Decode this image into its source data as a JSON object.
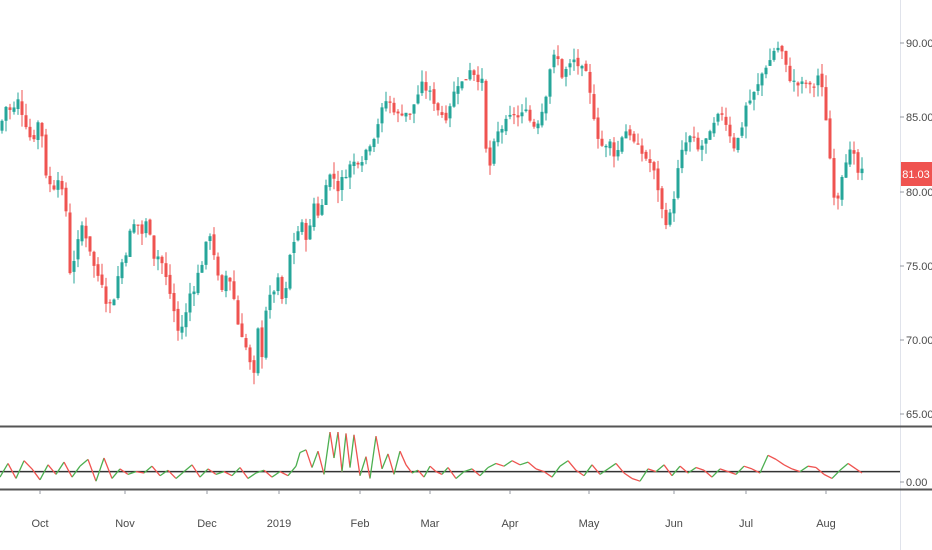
{
  "colors": {
    "up": "#26a69a",
    "down": "#ef5350",
    "osc_up": "#4caf50",
    "osc_down": "#ef5350",
    "axis_text": "#4a4a4a",
    "separator": "#555555",
    "baseline": "#333333",
    "price_tag": "#ef5350"
  },
  "chart_data": [
    {
      "type": "candlestick",
      "y_ticks": [
        "90.00",
        "85.00",
        "80.00",
        "75.00",
        "70.00",
        "65.00"
      ],
      "ylim": [
        64.2,
        92.5
      ],
      "x_ticks": [
        "Oct",
        "Nov",
        "Dec",
        "2019",
        "Feb",
        "Mar",
        "Apr",
        "May",
        "Jun",
        "Jul",
        "Aug"
      ],
      "last_price": "81.03",
      "grid": false,
      "close_path": [
        [
          0,
          83.8
        ],
        [
          5,
          85.5
        ],
        [
          12,
          85.0
        ],
        [
          18,
          85.8
        ],
        [
          25,
          84.5
        ],
        [
          32,
          83.0
        ],
        [
          40,
          84.8
        ],
        [
          46,
          81.0
        ],
        [
          52,
          79.8
        ],
        [
          58,
          80.8
        ],
        [
          66,
          78.5
        ],
        [
          70,
          74.5
        ],
        [
          75,
          75.5
        ],
        [
          82,
          77.5
        ],
        [
          88,
          76.5
        ],
        [
          95,
          74.5
        ],
        [
          102,
          73.8
        ],
        [
          108,
          72.0
        ],
        [
          114,
          72.8
        ],
        [
          120,
          74.8
        ],
        [
          125,
          75.5
        ],
        [
          130,
          77.0
        ],
        [
          136,
          77.8
        ],
        [
          142,
          77.0
        ],
        [
          148,
          78.0
        ],
        [
          154,
          75.5
        ],
        [
          160,
          75.5
        ],
        [
          166,
          74.0
        ],
        [
          172,
          72.5
        ],
        [
          178,
          70.5
        ],
        [
          184,
          71.0
        ],
        [
          190,
          73.0
        ],
        [
          195,
          73.5
        ],
        [
          200,
          74.8
        ],
        [
          205,
          75.5
        ],
        [
          208,
          77.5
        ],
        [
          212,
          76.5
        ],
        [
          218,
          74.0
        ],
        [
          222,
          73.0
        ],
        [
          227,
          74.5
        ],
        [
          232,
          73.5
        ],
        [
          238,
          71.0
        ],
        [
          244,
          70.0
        ],
        [
          249,
          68.5
        ],
        [
          254,
          67.5
        ],
        [
          258,
          70.5
        ],
        [
          262,
          69.0
        ],
        [
          266,
          72.0
        ],
        [
          272,
          73.0
        ],
        [
          278,
          73.8
        ],
        [
          284,
          72.0
        ],
        [
          290,
          75.5
        ],
        [
          296,
          77.0
        ],
        [
          302,
          77.5
        ],
        [
          308,
          76.5
        ],
        [
          314,
          79.0
        ],
        [
          320,
          78.0
        ],
        [
          326,
          80.5
        ],
        [
          332,
          81.0
        ],
        [
          338,
          80.0
        ],
        [
          344,
          80.8
        ],
        [
          350,
          81.5
        ],
        [
          356,
          81.8
        ],
        [
          362,
          82.0
        ],
        [
          368,
          82.8
        ],
        [
          374,
          83.5
        ],
        [
          380,
          84.8
        ],
        [
          386,
          85.8
        ],
        [
          392,
          85.5
        ],
        [
          398,
          84.8
        ],
        [
          404,
          85.2
        ],
        [
          410,
          84.8
        ],
        [
          416,
          86.0
        ],
        [
          422,
          86.8
        ],
        [
          428,
          86.5
        ],
        [
          434,
          85.8
        ],
        [
          440,
          85.0
        ],
        [
          446,
          84.8
        ],
        [
          452,
          86.0
        ],
        [
          458,
          87.0
        ],
        [
          464,
          87.0
        ],
        [
          470,
          88.0
        ],
        [
          476,
          87.5
        ],
        [
          482,
          87.0
        ],
        [
          486,
          82.5
        ],
        [
          490,
          81.5
        ],
        [
          496,
          83.5
        ],
        [
          502,
          84.0
        ],
        [
          508,
          84.5
        ],
        [
          514,
          85.0
        ],
        [
          520,
          84.5
        ],
        [
          526,
          85.5
        ],
        [
          532,
          84.0
        ],
        [
          538,
          84.5
        ],
        [
          544,
          85.5
        ],
        [
          550,
          88.0
        ],
        [
          556,
          89.0
        ],
        [
          562,
          87.5
        ],
        [
          568,
          88.0
        ],
        [
          574,
          88.5
        ],
        [
          580,
          88.0
        ],
        [
          586,
          87.5
        ],
        [
          592,
          85.5
        ],
        [
          598,
          83.5
        ],
        [
          604,
          82.5
        ],
        [
          610,
          83.0
        ],
        [
          616,
          82.0
        ],
        [
          622,
          83.5
        ],
        [
          628,
          84.0
        ],
        [
          634,
          83.0
        ],
        [
          640,
          82.5
        ],
        [
          646,
          82.0
        ],
        [
          652,
          81.5
        ],
        [
          658,
          80.0
        ],
        [
          662,
          78.5
        ],
        [
          668,
          77.5
        ],
        [
          674,
          79.5
        ],
        [
          680,
          82.0
        ],
        [
          686,
          83.0
        ],
        [
          692,
          83.5
        ],
        [
          698,
          82.5
        ],
        [
          704,
          83.0
        ],
        [
          710,
          83.5
        ],
        [
          716,
          84.5
        ],
        [
          722,
          85.0
        ],
        [
          728,
          84.0
        ],
        [
          734,
          82.8
        ],
        [
          740,
          83.5
        ],
        [
          746,
          85.5
        ],
        [
          752,
          86.0
        ],
        [
          758,
          86.8
        ],
        [
          764,
          88.0
        ],
        [
          770,
          88.5
        ],
        [
          776,
          89.5
        ],
        [
          782,
          89.0
        ],
        [
          788,
          87.5
        ],
        [
          794,
          87.0
        ],
        [
          800,
          86.8
        ],
        [
          806,
          87.0
        ],
        [
          812,
          86.5
        ],
        [
          818,
          87.5
        ],
        [
          824,
          86.0
        ],
        [
          830,
          82.0
        ],
        [
          836,
          78.5
        ],
        [
          840,
          80.5
        ],
        [
          846,
          82.0
        ],
        [
          852,
          82.5
        ],
        [
          858,
          81.0
        ],
        [
          862,
          81.0
        ]
      ]
    },
    {
      "type": "line",
      "y_ticks": [
        "0.00"
      ],
      "ylim": [
        -0.2,
        4.2
      ],
      "reference_line": 1.0,
      "x": [
        0,
        8,
        16,
        24,
        32,
        40,
        48,
        56,
        64,
        72,
        80,
        88,
        96,
        104,
        112,
        120,
        128,
        136,
        144,
        152,
        160,
        168,
        176,
        184,
        192,
        200,
        208,
        216,
        224,
        232,
        240,
        248,
        256,
        264,
        272,
        280,
        288,
        296,
        300,
        306,
        312,
        318,
        324,
        330,
        334,
        338,
        342,
        346,
        350,
        354,
        360,
        366,
        370,
        376,
        382,
        388,
        394,
        400,
        406,
        412,
        418,
        424,
        430,
        436,
        442,
        448,
        456,
        464,
        472,
        480,
        488,
        496,
        504,
        512,
        520,
        528,
        536,
        544,
        552,
        560,
        568,
        576,
        584,
        592,
        600,
        608,
        616,
        624,
        632,
        640,
        648,
        656,
        664,
        672,
        680,
        688,
        696,
        704,
        712,
        720,
        728,
        736,
        744,
        752,
        760,
        768,
        776,
        784,
        792,
        800,
        808,
        816,
        824,
        832,
        840,
        848,
        856,
        862
      ],
      "values": [
        0.6,
        1.6,
        0.5,
        1.8,
        1.2,
        0.4,
        1.5,
        0.8,
        1.7,
        0.6,
        1.4,
        1.9,
        0.3,
        2.0,
        0.5,
        1.2,
        0.8,
        1.0,
        0.9,
        1.4,
        0.7,
        1.1,
        0.5,
        1.0,
        1.5,
        0.6,
        1.2,
        0.8,
        1.0,
        0.7,
        1.3,
        0.5,
        0.9,
        1.1,
        0.6,
        1.0,
        0.7,
        1.4,
        2.4,
        2.6,
        1.3,
        2.5,
        0.8,
        3.9,
        2.0,
        3.9,
        1.0,
        3.8,
        1.3,
        3.7,
        0.7,
        2.1,
        0.5,
        3.6,
        1.2,
        2.3,
        0.8,
        2.5,
        1.5,
        0.9,
        1.1,
        0.6,
        1.4,
        1.0,
        0.8,
        1.3,
        0.5,
        1.0,
        1.2,
        0.7,
        1.3,
        1.6,
        1.4,
        1.8,
        1.5,
        1.7,
        1.2,
        1.0,
        0.6,
        1.4,
        1.8,
        1.1,
        0.7,
        1.5,
        0.8,
        1.2,
        1.6,
        0.9,
        0.5,
        0.3,
        1.2,
        1.0,
        1.5,
        0.7,
        1.4,
        0.9,
        1.3,
        1.1,
        0.6,
        1.2,
        1.0,
        0.8,
        1.4,
        1.2,
        0.9,
        2.2,
        1.9,
        1.5,
        1.2,
        1.0,
        1.4,
        1.3,
        0.8,
        0.5,
        1.1,
        1.6,
        1.2,
        0.9
      ]
    }
  ]
}
